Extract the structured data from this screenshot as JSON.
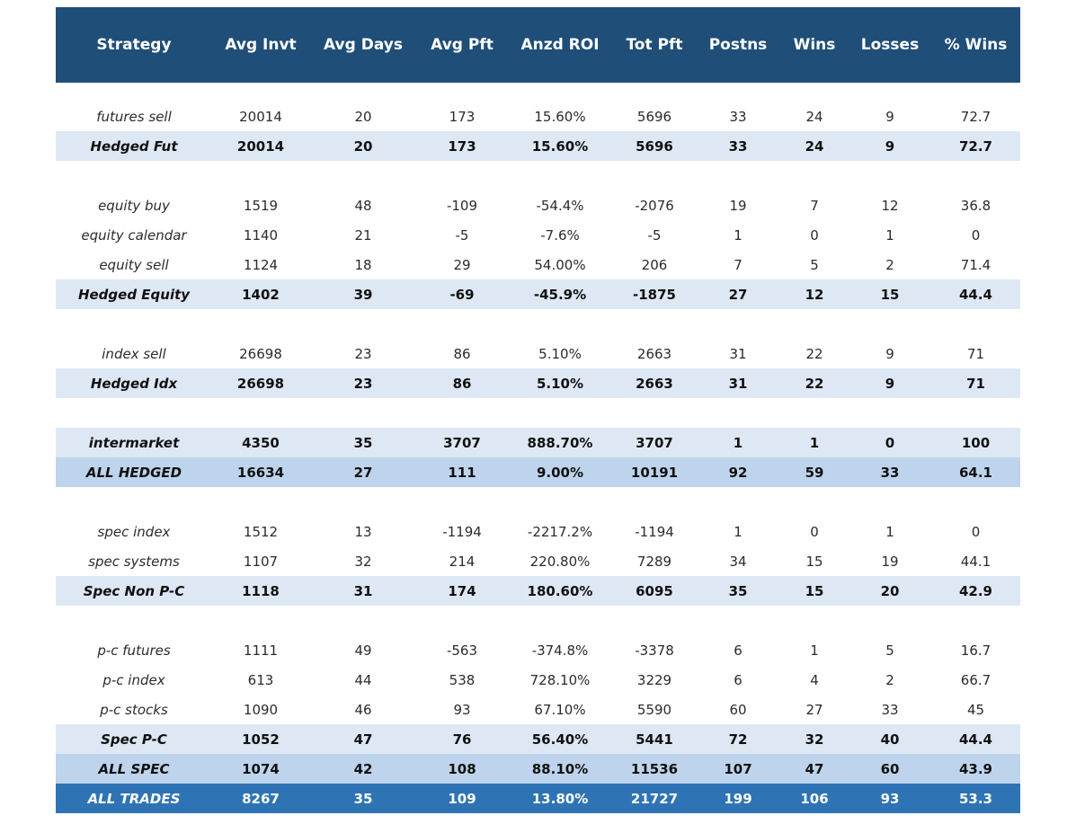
{
  "table": {
    "columns": [
      "Strategy",
      "Avg Invt",
      "Avg Days",
      "Avg Pft",
      "Anzd ROI",
      "Tot Pft",
      "Postns",
      "Wins",
      "Losses",
      "% Wins"
    ],
    "rows": [
      {
        "type": "top-gap"
      },
      {
        "type": "detail",
        "cells": [
          "futures sell",
          "20014",
          "20",
          "173",
          "15.60%",
          "5696",
          "33",
          "24",
          "9",
          "72.7"
        ]
      },
      {
        "type": "subtotal",
        "cells": [
          "Hedged Fut",
          "20014",
          "20",
          "173",
          "15.60%",
          "5696",
          "33",
          "24",
          "9",
          "72.7"
        ]
      },
      {
        "type": "spacer"
      },
      {
        "type": "detail",
        "cells": [
          "equity buy",
          "1519",
          "48",
          "-109",
          "-54.4%",
          "-2076",
          "19",
          "7",
          "12",
          "36.8"
        ]
      },
      {
        "type": "detail",
        "cells": [
          "equity calendar",
          "1140",
          "21",
          "-5",
          "-7.6%",
          "-5",
          "1",
          "0",
          "1",
          "0"
        ]
      },
      {
        "type": "detail",
        "cells": [
          "equity sell",
          "1124",
          "18",
          "29",
          "54.00%",
          "206",
          "7",
          "5",
          "2",
          "71.4"
        ]
      },
      {
        "type": "subtotal",
        "cells": [
          "Hedged Equity",
          "1402",
          "39",
          "-69",
          "-45.9%",
          "-1875",
          "27",
          "12",
          "15",
          "44.4"
        ]
      },
      {
        "type": "spacer"
      },
      {
        "type": "detail",
        "cells": [
          "index sell",
          "26698",
          "23",
          "86",
          "5.10%",
          "2663",
          "31",
          "22",
          "9",
          "71"
        ]
      },
      {
        "type": "subtotal",
        "cells": [
          "Hedged Idx",
          "26698",
          "23",
          "86",
          "5.10%",
          "2663",
          "31",
          "22",
          "9",
          "71"
        ]
      },
      {
        "type": "spacer"
      },
      {
        "type": "subtotal",
        "cells": [
          "intermarket",
          "4350",
          "35",
          "3707",
          "888.70%",
          "3707",
          "1",
          "1",
          "0",
          "100"
        ]
      },
      {
        "type": "total",
        "cells": [
          "ALL HEDGED",
          "16634",
          "27",
          "111",
          "9.00%",
          "10191",
          "92",
          "59",
          "33",
          "64.1"
        ]
      },
      {
        "type": "spacer"
      },
      {
        "type": "detail",
        "cells": [
          "spec index",
          "1512",
          "13",
          "-1194",
          "-2217.2%",
          "-1194",
          "1",
          "0",
          "1",
          "0"
        ]
      },
      {
        "type": "detail",
        "cells": [
          "spec systems",
          "1107",
          "32",
          "214",
          "220.80%",
          "7289",
          "34",
          "15",
          "19",
          "44.1"
        ]
      },
      {
        "type": "subtotal",
        "cells": [
          "Spec Non P-C",
          "1118",
          "31",
          "174",
          "180.60%",
          "6095",
          "35",
          "15",
          "20",
          "42.9"
        ]
      },
      {
        "type": "spacer"
      },
      {
        "type": "detail",
        "cells": [
          "p-c futures",
          "1111",
          "49",
          "-563",
          "-374.8%",
          "-3378",
          "6",
          "1",
          "5",
          "16.7"
        ]
      },
      {
        "type": "detail",
        "cells": [
          "p-c index",
          "613",
          "44",
          "538",
          "728.10%",
          "3229",
          "6",
          "4",
          "2",
          "66.7"
        ]
      },
      {
        "type": "detail",
        "cells": [
          "p-c stocks",
          "1090",
          "46",
          "93",
          "67.10%",
          "5590",
          "60",
          "27",
          "33",
          "45"
        ]
      },
      {
        "type": "subtotal",
        "cells": [
          "Spec P-C",
          "1052",
          "47",
          "76",
          "56.40%",
          "5441",
          "72",
          "32",
          "40",
          "44.4"
        ]
      },
      {
        "type": "total",
        "cells": [
          "ALL SPEC",
          "1074",
          "42",
          "108",
          "88.10%",
          "11536",
          "107",
          "47",
          "60",
          "43.9"
        ]
      },
      {
        "type": "grand",
        "cells": [
          "ALL TRADES",
          "8267",
          "35",
          "109",
          "13.80%",
          "21727",
          "199",
          "106",
          "93",
          "53.3"
        ]
      }
    ]
  },
  "colors": {
    "header_bg": "#1f4e79",
    "subtotal_bg": "#dde8f4",
    "total_bg": "#bdd4ec",
    "grand_bg": "#2e74b5"
  }
}
